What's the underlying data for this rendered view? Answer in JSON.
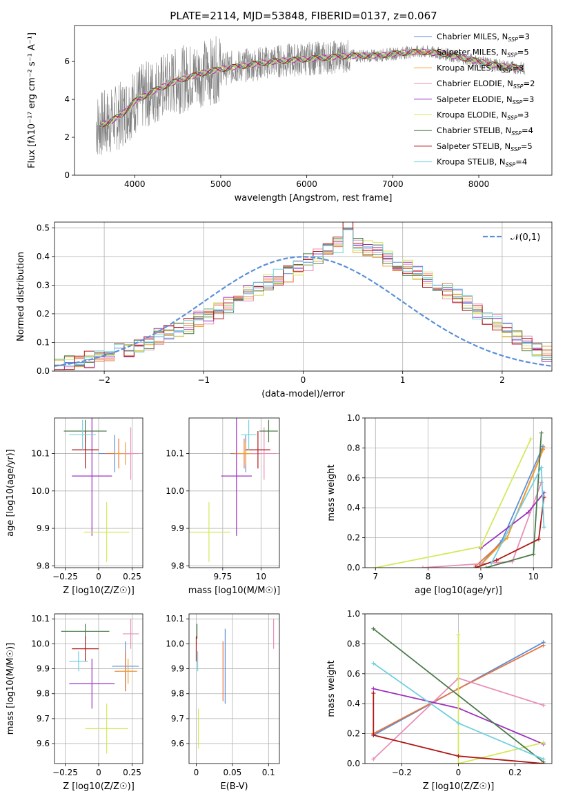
{
  "figure_title": "PLATE=2114, MJD=53848, FIBERID=0137, z=0.067",
  "colors": {
    "Chabrier MILES": "#5b8fd9",
    "Salpeter MILES": "#e8743b",
    "Kroupa MILES": "#f0a030",
    "Chabrier ELODIE": "#e88fb8",
    "Salpeter ELODIE": "#9b30c0",
    "Kroupa ELODIE": "#d4e85a",
    "Chabrier STELIB": "#4a7a4a",
    "Salpeter STELIB": "#b01818",
    "Kroupa STELIB": "#6fd0e0",
    "data": "#808080",
    "normal": "#5b8fd9"
  },
  "chart_data": [
    {
      "type": "line",
      "panel": "spectrum",
      "title": "PLATE=2114, MJD=53848, FIBERID=0137, z=0.067",
      "xlabel": "wavelength [Angstrom, rest frame]",
      "ylabel": "Flux [fλ10⁻¹⁷ erg cm⁻² s⁻¹ A⁻¹]",
      "xlim": [
        3300,
        8850
      ],
      "ylim": [
        0,
        7.9
      ],
      "xticks": [
        4000,
        5000,
        6000,
        7000,
        8000
      ],
      "yticks": [
        0,
        2,
        4,
        6
      ],
      "legend_position": "right",
      "legend": [
        "Chabrier MILES, N_SSP=3",
        "Salpeter MILES, N_SSP=5",
        "Kroupa MILES, N_SSP=3",
        "Chabrier ELODIE, N_SSP=2",
        "Salpeter ELODIE, N_SSP=3",
        "Kroupa ELODIE, N_SSP=3",
        "Chabrier STELIB, N_SSP=4",
        "Salpeter STELIB, N_SSP=5",
        "Kroupa STELIB, N_SSP=4"
      ],
      "continuum": {
        "x": [
          3550,
          3700,
          3850,
          4000,
          4200,
          4500,
          4800,
          5000,
          5300,
          5600,
          5900,
          6200,
          6500,
          6800,
          7000,
          7200,
          7400,
          7600,
          7800,
          8000,
          8200,
          8400,
          8550
        ],
        "y": [
          2.6,
          2.8,
          3.2,
          3.9,
          4.4,
          5.0,
          5.4,
          5.6,
          5.8,
          6.0,
          6.1,
          6.2,
          6.3,
          6.3,
          6.4,
          6.5,
          6.5,
          6.4,
          6.2,
          6.0,
          5.8,
          5.7,
          5.6
        ]
      }
    },
    {
      "type": "bar",
      "panel": "residual_histogram",
      "xlabel": "(data-model)/error",
      "ylabel": "Normed distribution",
      "xlim": [
        -2.5,
        2.5
      ],
      "ylim": [
        0,
        0.52
      ],
      "xticks": [
        -2,
        -1,
        0,
        1,
        2
      ],
      "yticks": [
        0.0,
        0.1,
        0.2,
        0.3,
        0.4,
        0.5
      ],
      "legend": [
        "𝒩(0,1)"
      ],
      "legend_position": "top-right",
      "bin_width": 0.1,
      "series": [
        {
          "name": "Chabrier MILES",
          "values": [
            0.02,
            0.03,
            0.03,
            0.04,
            0.05,
            0.06,
            0.08,
            0.07,
            0.09,
            0.1,
            0.12,
            0.13,
            0.14,
            0.16,
            0.18,
            0.19,
            0.21,
            0.23,
            0.25,
            0.27,
            0.29,
            0.31,
            0.33,
            0.34,
            0.36,
            0.38,
            0.4,
            0.42,
            0.44,
            0.5,
            0.44,
            0.43,
            0.42,
            0.39,
            0.38,
            0.36,
            0.34,
            0.32,
            0.3,
            0.28,
            0.26,
            0.24,
            0.21,
            0.19,
            0.17,
            0.14,
            0.12,
            0.1,
            0.08,
            0.06
          ]
        }
      ]
    },
    {
      "type": "scatter",
      "panel": "age_vs_Z",
      "xlabel": "Z [log10(Z/Z☉)]",
      "ylabel": "age [log10(age/yr)]",
      "xlim": [
        -0.33,
        0.33
      ],
      "ylim": [
        9.795,
        10.195
      ],
      "xticks": [
        -0.25,
        0.0,
        0.25
      ],
      "yticks": [
        9.8,
        9.9,
        10.0,
        10.1
      ],
      "points": [
        {
          "model": "Chabrier MILES",
          "x": 0.12,
          "y": 10.1,
          "xerr": 0.12,
          "yerr": 0.05
        },
        {
          "model": "Salpeter MILES",
          "x": 0.15,
          "y": 10.1,
          "xerr": 0.1,
          "yerr": 0.04
        },
        {
          "model": "Kroupa MILES",
          "x": 0.2,
          "y": 10.1,
          "xerr": 0.08,
          "yerr": 0.03
        },
        {
          "model": "Chabrier ELODIE",
          "x": 0.24,
          "y": 10.1,
          "xerr": 0.06,
          "yerr": 0.07
        },
        {
          "model": "Salpeter ELODIE",
          "x": -0.05,
          "y": 10.04,
          "xerr": 0.15,
          "yerr": 0.16
        },
        {
          "model": "Kroupa ELODIE",
          "x": 0.06,
          "y": 9.89,
          "xerr": 0.17,
          "yerr": 0.08
        },
        {
          "model": "Chabrier STELIB",
          "x": -0.1,
          "y": 10.16,
          "xerr": 0.16,
          "yerr": 0.03
        },
        {
          "model": "Salpeter STELIB",
          "x": -0.1,
          "y": 10.11,
          "xerr": 0.1,
          "yerr": 0.05
        },
        {
          "model": "Kroupa STELIB",
          "x": -0.12,
          "y": 10.15,
          "xerr": 0.1,
          "yerr": 0.04
        }
      ]
    },
    {
      "type": "scatter",
      "panel": "age_vs_mass",
      "xlabel": "mass [log10(M/M☉)]",
      "ylabel": "",
      "xlim": [
        9.53,
        10.12
      ],
      "ylim": [
        9.795,
        10.195
      ],
      "xticks": [
        9.75,
        10.0
      ],
      "yticks": [
        9.8,
        9.9,
        10.0,
        10.1
      ],
      "points": [
        {
          "model": "Chabrier MILES",
          "x": 9.9,
          "y": 10.1,
          "xerr": 0.1,
          "yerr": 0.05
        },
        {
          "model": "Salpeter MILES",
          "x": 9.89,
          "y": 10.1,
          "xerr": 0.08,
          "yerr": 0.04
        },
        {
          "model": "Kroupa MILES",
          "x": 9.9,
          "y": 10.1,
          "xerr": 0.07,
          "yerr": 0.03
        },
        {
          "model": "Chabrier ELODIE",
          "x": 10.02,
          "y": 10.1,
          "xerr": 0.08,
          "yerr": 0.07
        },
        {
          "model": "Salpeter ELODIE",
          "x": 9.84,
          "y": 10.04,
          "xerr": 0.1,
          "yerr": 0.16
        },
        {
          "model": "Kroupa ELODIE",
          "x": 9.66,
          "y": 9.89,
          "xerr": 0.14,
          "yerr": 0.08
        },
        {
          "model": "Chabrier STELIB",
          "x": 10.05,
          "y": 10.16,
          "xerr": 0.06,
          "yerr": 0.03
        },
        {
          "model": "Salpeter STELIB",
          "x": 9.98,
          "y": 10.11,
          "xerr": 0.08,
          "yerr": 0.05
        },
        {
          "model": "Kroupa STELIB",
          "x": 9.92,
          "y": 10.15,
          "xerr": 0.05,
          "yerr": 0.04
        }
      ]
    },
    {
      "type": "line",
      "panel": "mass_weight_vs_age",
      "xlabel": "age [log10(age/yr)]",
      "ylabel": "mass weight",
      "xlim": [
        6.8,
        10.35
      ],
      "ylim": [
        0,
        1.0
      ],
      "xticks": [
        7,
        8,
        9,
        10
      ],
      "yticks": [
        0.0,
        0.2,
        0.4,
        0.6,
        0.8,
        1.0
      ],
      "series": [
        {
          "name": "Chabrier MILES",
          "x": [
            9.0,
            9.4,
            10.18
          ],
          "y": [
            0.02,
            0.18,
            0.81
          ]
        },
        {
          "name": "Salpeter MILES",
          "x": [
            8.9,
            9.5,
            10.18
          ],
          "y": [
            0.01,
            0.2,
            0.79
          ]
        },
        {
          "name": "Kroupa MILES",
          "x": [
            8.95,
            9.5,
            10.2
          ],
          "y": [
            0.0,
            0.2,
            0.8
          ]
        },
        {
          "name": "Chabrier ELODIE",
          "x": [
            7.9,
            9.6,
            10.15
          ],
          "y": [
            0.0,
            0.04,
            0.57
          ]
        },
        {
          "name": "Salpeter ELODIE",
          "x": [
            9.0,
            9.9,
            10.2
          ],
          "y": [
            0.13,
            0.37,
            0.5
          ]
        },
        {
          "name": "Kroupa ELODIE",
          "x": [
            7.0,
            9.0,
            9.95
          ],
          "y": [
            0.0,
            0.14,
            0.86
          ]
        },
        {
          "name": "Chabrier STELIB",
          "x": [
            9.1,
            10.0,
            10.15
          ],
          "y": [
            0.0,
            0.09,
            0.9
          ]
        },
        {
          "name": "Salpeter STELIB",
          "x": [
            8.9,
            9.3,
            10.1,
            10.2
          ],
          "y": [
            0.0,
            0.05,
            0.19,
            0.47
          ]
        },
        {
          "name": "Kroupa STELIB",
          "x": [
            9.2,
            10.15,
            10.2
          ],
          "y": [
            0.03,
            0.67,
            0.27
          ]
        }
      ]
    },
    {
      "type": "scatter",
      "panel": "mass_vs_Z",
      "xlabel": "Z [log10(Z/Z☉)]",
      "ylabel": "mass [log10(M/M☉)]",
      "xlim": [
        -0.33,
        0.33
      ],
      "ylim": [
        9.52,
        10.12
      ],
      "xticks": [
        -0.25,
        0.0,
        0.25
      ],
      "yticks": [
        9.6,
        9.7,
        9.8,
        9.9,
        10.0,
        10.1
      ],
      "points": [
        {
          "model": "Chabrier MILES",
          "x": 0.2,
          "y": 9.91,
          "xerr": 0.1,
          "yerr": 0.1
        },
        {
          "model": "Salpeter MILES",
          "x": 0.2,
          "y": 9.89,
          "xerr": 0.08,
          "yerr": 0.08
        },
        {
          "model": "Kroupa MILES",
          "x": 0.22,
          "y": 9.89,
          "xerr": 0.07,
          "yerr": 0.05
        },
        {
          "model": "Chabrier ELODIE",
          "x": 0.24,
          "y": 10.04,
          "xerr": 0.06,
          "yerr": 0.06
        },
        {
          "model": "Salpeter ELODIE",
          "x": -0.05,
          "y": 9.84,
          "xerr": 0.17,
          "yerr": 0.1
        },
        {
          "model": "Kroupa ELODIE",
          "x": 0.06,
          "y": 9.66,
          "xerr": 0.16,
          "yerr": 0.1
        },
        {
          "model": "Chabrier STELIB",
          "x": -0.1,
          "y": 10.05,
          "xerr": 0.18,
          "yerr": 0.03
        },
        {
          "model": "Salpeter STELIB",
          "x": -0.1,
          "y": 9.98,
          "xerr": 0.1,
          "yerr": 0.05
        },
        {
          "model": "Kroupa STELIB",
          "x": -0.15,
          "y": 9.93,
          "xerr": 0.07,
          "yerr": 0.04
        }
      ]
    },
    {
      "type": "scatter",
      "panel": "mass_vs_ebv",
      "xlabel": "E(B-V)",
      "ylabel": "",
      "xlim": [
        -0.01,
        0.115
      ],
      "ylim": [
        9.52,
        10.12
      ],
      "xticks": [
        0.0,
        0.05,
        0.1
      ],
      "yticks": [
        9.6,
        9.7,
        9.8,
        9.9,
        10.0,
        10.1
      ],
      "points": [
        {
          "model": "Chabrier MILES",
          "x": 0.04,
          "y": 9.91,
          "yerr": 0.15
        },
        {
          "model": "Salpeter MILES",
          "x": 0.037,
          "y": 9.89,
          "yerr": 0.12
        },
        {
          "model": "Chabrier ELODIE",
          "x": 0.107,
          "y": 10.04,
          "yerr": 0.06
        },
        {
          "model": "Kroupa ELODIE",
          "x": 0.003,
          "y": 9.66,
          "yerr": 0.08
        },
        {
          "model": "Chabrier STELIB",
          "x": 0.001,
          "y": 10.05,
          "yerr": 0.03
        },
        {
          "model": "Salpeter STELIB",
          "x": 0.0,
          "y": 9.98,
          "yerr": 0.05
        },
        {
          "model": "Kroupa STELIB",
          "x": 0.002,
          "y": 9.93,
          "yerr": 0.04
        }
      ]
    },
    {
      "type": "line",
      "panel": "mass_weight_vs_Z",
      "xlabel": "Z [log10(Z/Z☉)]",
      "ylabel": "mass weight",
      "xlim": [
        -0.33,
        0.33
      ],
      "ylim": [
        0,
        1.0
      ],
      "xticks": [
        -0.2,
        0.0,
        0.2
      ],
      "yticks": [
        0.0,
        0.2,
        0.4,
        0.6,
        0.8,
        1.0
      ],
      "series": [
        {
          "name": "Chabrier MILES",
          "x": [
            -0.3,
            0.0,
            0.3
          ],
          "y": [
            0.19,
            0.5,
            0.81
          ]
        },
        {
          "name": "Salpeter MILES",
          "x": [
            -0.3,
            0.0,
            0.3
          ],
          "y": [
            0.2,
            0.5,
            0.79
          ]
        },
        {
          "name": "Chabrier ELODIE",
          "x": [
            -0.3,
            0.0,
            0.3
          ],
          "y": [
            0.03,
            0.57,
            0.39
          ]
        },
        {
          "name": "Salpeter ELODIE",
          "x": [
            -0.3,
            0.0,
            0.3
          ],
          "y": [
            0.5,
            0.37,
            0.13
          ]
        },
        {
          "name": "Kroupa ELODIE",
          "x": [
            0.0,
            0.0,
            0.3
          ],
          "y": [
            0.86,
            0.0,
            0.14
          ]
        },
        {
          "name": "Chabrier STELIB",
          "x": [
            -0.3,
            0.3
          ],
          "y": [
            0.9,
            0.01
          ]
        },
        {
          "name": "Salpeter STELIB",
          "x": [
            -0.3,
            -0.3,
            0.0,
            0.3
          ],
          "y": [
            0.47,
            0.19,
            0.05,
            0.0
          ]
        },
        {
          "name": "Kroupa STELIB",
          "x": [
            -0.3,
            0.0,
            0.3
          ],
          "y": [
            0.67,
            0.27,
            0.03
          ]
        }
      ]
    }
  ]
}
